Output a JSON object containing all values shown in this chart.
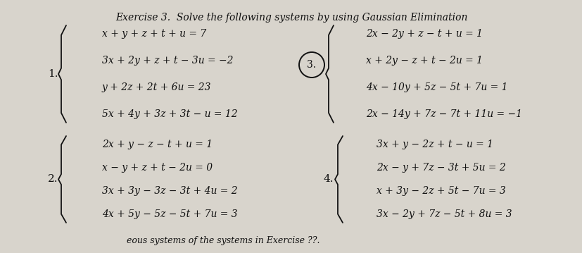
{
  "title": "Exercise 3.  Solve the following systems by using Gaussian Elimination",
  "bg_color": "#d8d4cc",
  "text_color": "#111111",
  "s1_label": "1.",
  "s1_eqs": [
    "x + y + z + t + u = 7",
    "3x + 2y + z + t − 3u = −2",
    "y + 2z + 2t + 6u = 23",
    "5x + 4y + 3z + 3t − u = 12"
  ],
  "s2_label": "2.",
  "s2_eqs": [
    "2x + y − z − t + u = 1",
    "x − y + z + t − 2u = 0",
    "3x + 3y − 3z − 3t + 4u = 2",
    "4x + 5y − 5z − 5t + 7u = 3"
  ],
  "s3_label": "3.",
  "s3_eqs": [
    "2x − 2y + z − t + u = 1",
    "x + 2y − z + t − 2u = 1",
    "4x − 10y + 5z − 5t + 7u = 1",
    "2x − 14y + 7z − 7t + 11u = −1"
  ],
  "s4_label": "4.",
  "s4_eqs": [
    "3x + y − 2z + t − u = 1",
    "2x − y + 7z − 3t + 5u = 2",
    "x + 3y − 2z + 5t − 7u = 3",
    "3x − 2y + 7z − 5t + 8u = 3"
  ],
  "footer": "eous systems of the systems in Exercise ??."
}
